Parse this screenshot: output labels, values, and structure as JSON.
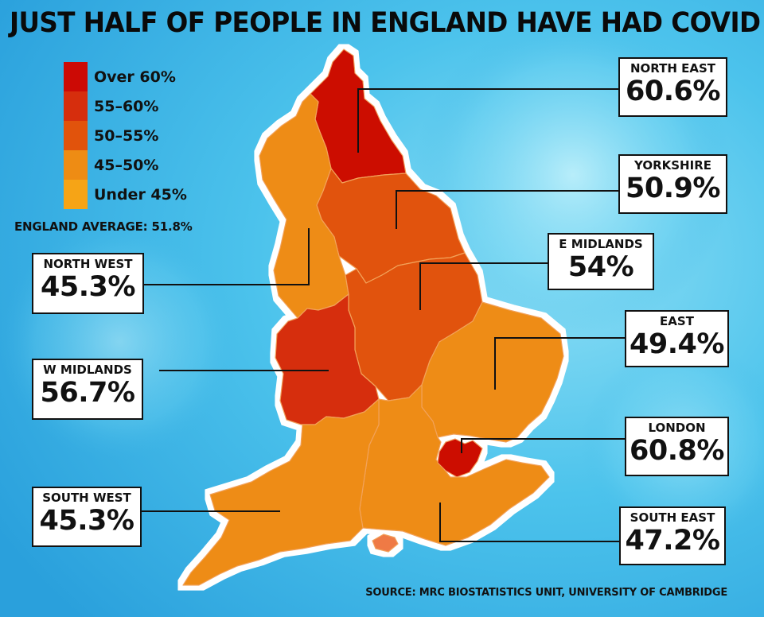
{
  "title": "JUST HALF OF PEOPLE IN ENGLAND HAVE HAD COVID",
  "legend": [
    {
      "label": "Over 60%",
      "color": "#cc0a05"
    },
    {
      "label": "55–60%",
      "color": "#d62e0d"
    },
    {
      "label": "50–55%",
      "color": "#e1530c"
    },
    {
      "label": "45–50%",
      "color": "#ee8c14"
    },
    {
      "label": "Under 45%",
      "color": "#f6a416"
    }
  ],
  "england_average": "ENGLAND AVERAGE: 51.8%",
  "regions": [
    {
      "id": "north-east",
      "name": "NORTH EAST",
      "value": "60.6%",
      "color": "#cc0a05"
    },
    {
      "id": "yorkshire",
      "name": "YORKSHIRE",
      "value": "50.9%",
      "color": "#e1530c"
    },
    {
      "id": "north-west",
      "name": "NORTH WEST",
      "value": "45.3%",
      "color": "#ee8c14"
    },
    {
      "id": "e-midlands",
      "name": "E MIDLANDS",
      "value": "54%",
      "color": "#e1530c"
    },
    {
      "id": "w-midlands",
      "name": "W MIDLANDS",
      "value": "56.7%",
      "color": "#d62e0d"
    },
    {
      "id": "east",
      "name": "EAST",
      "value": "49.4%",
      "color": "#ee8c14"
    },
    {
      "id": "london",
      "name": "LONDON",
      "value": "60.8%",
      "color": "#cc0a05"
    },
    {
      "id": "south-west",
      "name": "SOUTH WEST",
      "value": "45.3%",
      "color": "#ee8c14"
    },
    {
      "id": "south-east",
      "name": "SOUTH EAST",
      "value": "47.2%",
      "color": "#ee8c14"
    }
  ],
  "source": "SOURCE: MRC BIOSTATISTICS UNIT, UNIVERSITY OF CAMBRIDGE"
}
